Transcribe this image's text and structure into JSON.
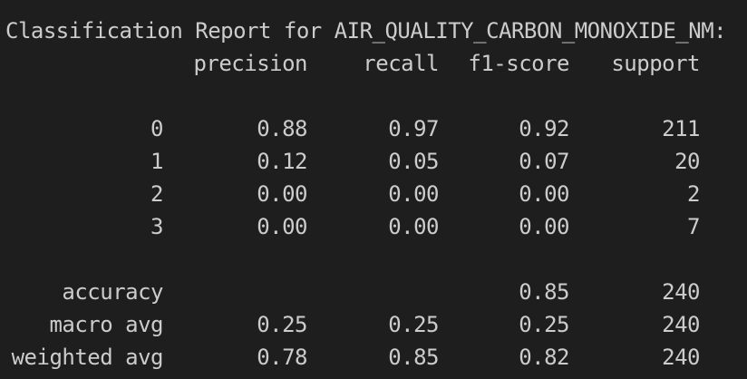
{
  "title": "Classification Report for AIR_QUALITY_CARBON_MONOXIDE_NM:",
  "headers": {
    "precision": "precision",
    "recall": "recall",
    "f1": "f1-score",
    "support": "support"
  },
  "classes": [
    {
      "label": "0",
      "precision": "0.88",
      "recall": "0.97",
      "f1": "0.92",
      "support": "211"
    },
    {
      "label": "1",
      "precision": "0.12",
      "recall": "0.05",
      "f1": "0.07",
      "support": "20"
    },
    {
      "label": "2",
      "precision": "0.00",
      "recall": "0.00",
      "f1": "0.00",
      "support": "2"
    },
    {
      "label": "3",
      "precision": "0.00",
      "recall": "0.00",
      "f1": "0.00",
      "support": "7"
    }
  ],
  "accuracy": {
    "label": "accuracy",
    "f1": "0.85",
    "support": "240"
  },
  "macro_avg": {
    "label": "macro avg",
    "precision": "0.25",
    "recall": "0.25",
    "f1": "0.25",
    "support": "240"
  },
  "weighted_avg": {
    "label": "weighted avg",
    "precision": "0.78",
    "recall": "0.85",
    "f1": "0.82",
    "support": "240"
  }
}
